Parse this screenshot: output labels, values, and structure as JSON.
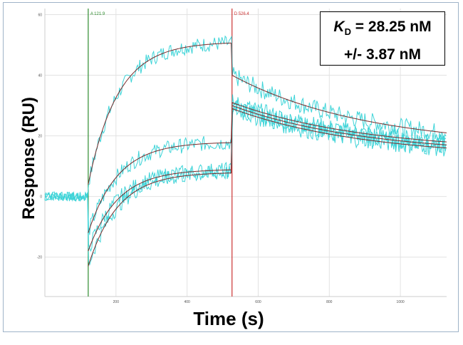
{
  "chart_data": {
    "type": "line",
    "xlabel": "Time (s)",
    "ylabel": "Response (RU)",
    "xlim": [
      0,
      1130
    ],
    "ylim": [
      -33,
      62
    ],
    "xticks": [
      200,
      400,
      600,
      800,
      1000
    ],
    "yticks": [
      -20,
      0,
      20,
      40,
      60
    ],
    "grid": true,
    "markers": [
      {
        "label": "A 121.9",
        "x": 121.9,
        "color": "#2e8b2e"
      },
      {
        "label": "D 526.4",
        "x": 526.4,
        "color": "#cc3333"
      }
    ],
    "annotation": {
      "kd_symbol": "K",
      "kd_subscript": "D",
      "kd_value": "= 28.25 nM",
      "kd_error": "+/- 3.87 nM"
    },
    "baseline_y": 0,
    "series": [
      {
        "values": {
          "assoc_start": 4,
          "assoc_plateau": 51,
          "diss_start": 40,
          "diss_end": 21
        }
      },
      {
        "values": {
          "assoc_start": -12,
          "assoc_plateau": 18,
          "diss_start": 31,
          "diss_end": 18
        }
      },
      {
        "values": {
          "assoc_start": -18,
          "assoc_plateau": 9,
          "diss_start": 30,
          "diss_end": 17
        }
      },
      {
        "values": {
          "assoc_start": -23,
          "assoc_plateau": 8,
          "diss_start": 29,
          "diss_end": 16
        }
      }
    ],
    "colors": {
      "data": "#3ed4d8",
      "fit": "#7a2a2a",
      "grid": "#e2e2e2",
      "axis": "#cccccc"
    }
  }
}
